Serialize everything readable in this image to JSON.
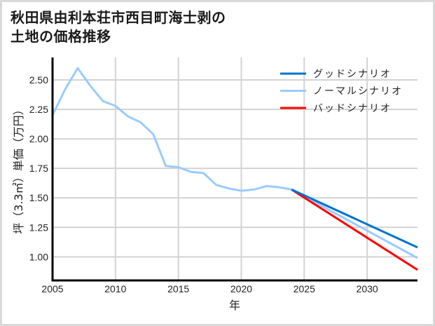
{
  "title": {
    "line1": "秋田県由利本荘市西目町海士剥の",
    "line2": "土地の価格推移"
  },
  "colors": {
    "good": "#0072CE",
    "normal": "#99CCFF",
    "bad": "#FF0000",
    "grid": "#d3d3d3",
    "axis": "#000000",
    "border": "#d9d9d9"
  },
  "chart_data": {
    "type": "line",
    "title": "秋田県由利本荘市西目町海士剥の土地の価格推移",
    "xlabel": "年",
    "ylabel": "坪（3.3㎡）単価（万円）",
    "xlim": [
      2005,
      2034
    ],
    "ylim": [
      0.8,
      2.69
    ],
    "xticks": [
      2005,
      2010,
      2015,
      2020,
      2025,
      2030
    ],
    "yticks": [
      1.0,
      1.25,
      1.5,
      1.75,
      2.0,
      2.25,
      2.5
    ],
    "ytick_labels": [
      "1.00",
      "1.25",
      "1.50",
      "1.75",
      "2.00",
      "2.25",
      "2.50"
    ],
    "grid": true,
    "legend_position": "upper right",
    "series": [
      {
        "name": "グッドシナリオ",
        "color": "#0072CE",
        "x": [
          2024,
          2034
        ],
        "values": [
          1.57,
          1.08
        ]
      },
      {
        "name": "ノーマルシナリオ",
        "color": "#99CCFF",
        "x": [
          2005,
          2006,
          2007,
          2008,
          2009,
          2010,
          2011,
          2012,
          2013,
          2014,
          2015,
          2016,
          2017,
          2018,
          2019,
          2020,
          2021,
          2022,
          2023,
          2024,
          2034
        ],
        "values": [
          2.2,
          2.42,
          2.6,
          2.45,
          2.32,
          2.28,
          2.19,
          2.14,
          2.04,
          1.77,
          1.76,
          1.72,
          1.71,
          1.61,
          1.58,
          1.56,
          1.57,
          1.6,
          1.59,
          1.57,
          0.99
        ]
      },
      {
        "name": "バッドシナリオ",
        "color": "#FF0000",
        "x": [
          2024,
          2034
        ],
        "values": [
          1.57,
          0.89
        ]
      }
    ]
  },
  "legend": {
    "items": [
      {
        "label": "グッドシナリオ",
        "color": "#0072CE"
      },
      {
        "label": "ノーマルシナリオ",
        "color": "#99CCFF"
      },
      {
        "label": "バッドシナリオ",
        "color": "#FF0000"
      }
    ]
  }
}
